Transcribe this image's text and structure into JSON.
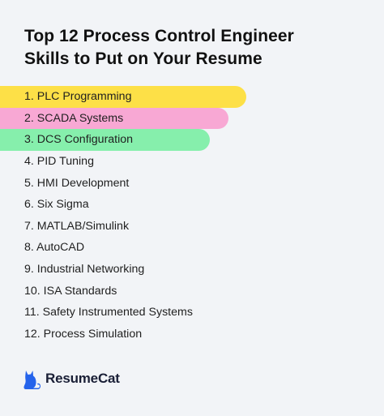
{
  "header": {
    "title_line1": "Top 12 Process Control Engineer",
    "title_line2": "Skills to Put on Your Resume"
  },
  "skills": [
    "1. PLC Programming",
    "2. SCADA Systems",
    "3. DCS Configuration",
    "4. PID Tuning",
    "5. HMI Development",
    "6. Six Sigma",
    "7. MATLAB/Simulink",
    "8. AutoCAD",
    "9. Industrial Networking",
    "10. ISA Standards",
    "11. Safety Instrumented Systems",
    "12. Process Simulation"
  ],
  "highlight_colors": [
    "#fde047",
    "#f8a8d4",
    "#86efac"
  ],
  "brand": {
    "name": "ResumeCat",
    "icon": "cat-icon",
    "color": "#2563eb"
  }
}
